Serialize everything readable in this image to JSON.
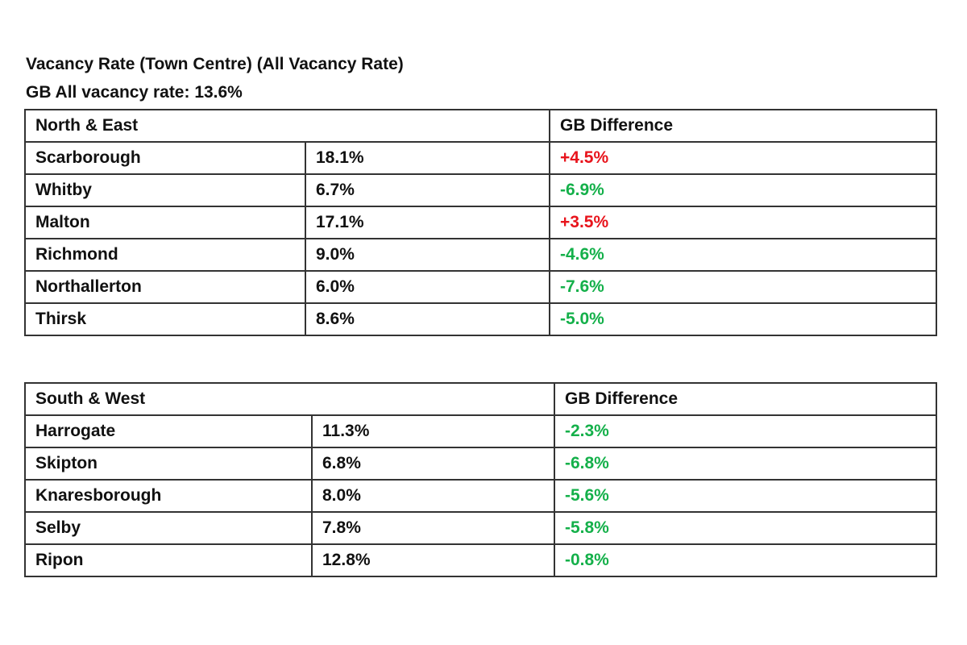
{
  "title": "Vacancy Rate (Town Centre) (All Vacancy Rate)",
  "subtitle": "GB All vacancy rate: 13.6%",
  "colors": {
    "positive": "#e8141c",
    "negative": "#14b04a",
    "border": "#333333"
  },
  "tables": [
    {
      "region": "North & East",
      "diff_header": "GB Difference",
      "rows": [
        {
          "town": "Scarborough",
          "rate": "18.1%",
          "diff": "+4.5%"
        },
        {
          "town": "Whitby",
          "rate": "6.7%",
          "diff": "-6.9%"
        },
        {
          "town": "Malton",
          "rate": "17.1%",
          "diff": "+3.5%"
        },
        {
          "town": "Richmond",
          "rate": "9.0%",
          "diff": "-4.6%"
        },
        {
          "town": "Northallerton",
          "rate": "6.0%",
          "diff": "-7.6%"
        },
        {
          "town": "Thirsk",
          "rate": "8.6%",
          "diff": "-5.0%"
        }
      ]
    },
    {
      "region": "South & West",
      "diff_header": "GB Difference",
      "rows": [
        {
          "town": "Harrogate",
          "rate": "11.3%",
          "diff": "-2.3%"
        },
        {
          "town": "Skipton",
          "rate": "6.8%",
          "diff": "-6.8%"
        },
        {
          "town": "Knaresborough",
          "rate": "8.0%",
          "diff": "-5.6%"
        },
        {
          "town": "Selby",
          "rate": "7.8%",
          "diff": "-5.8%"
        },
        {
          "town": "Ripon",
          "rate": "12.8%",
          "diff": "-0.8%"
        }
      ]
    }
  ]
}
